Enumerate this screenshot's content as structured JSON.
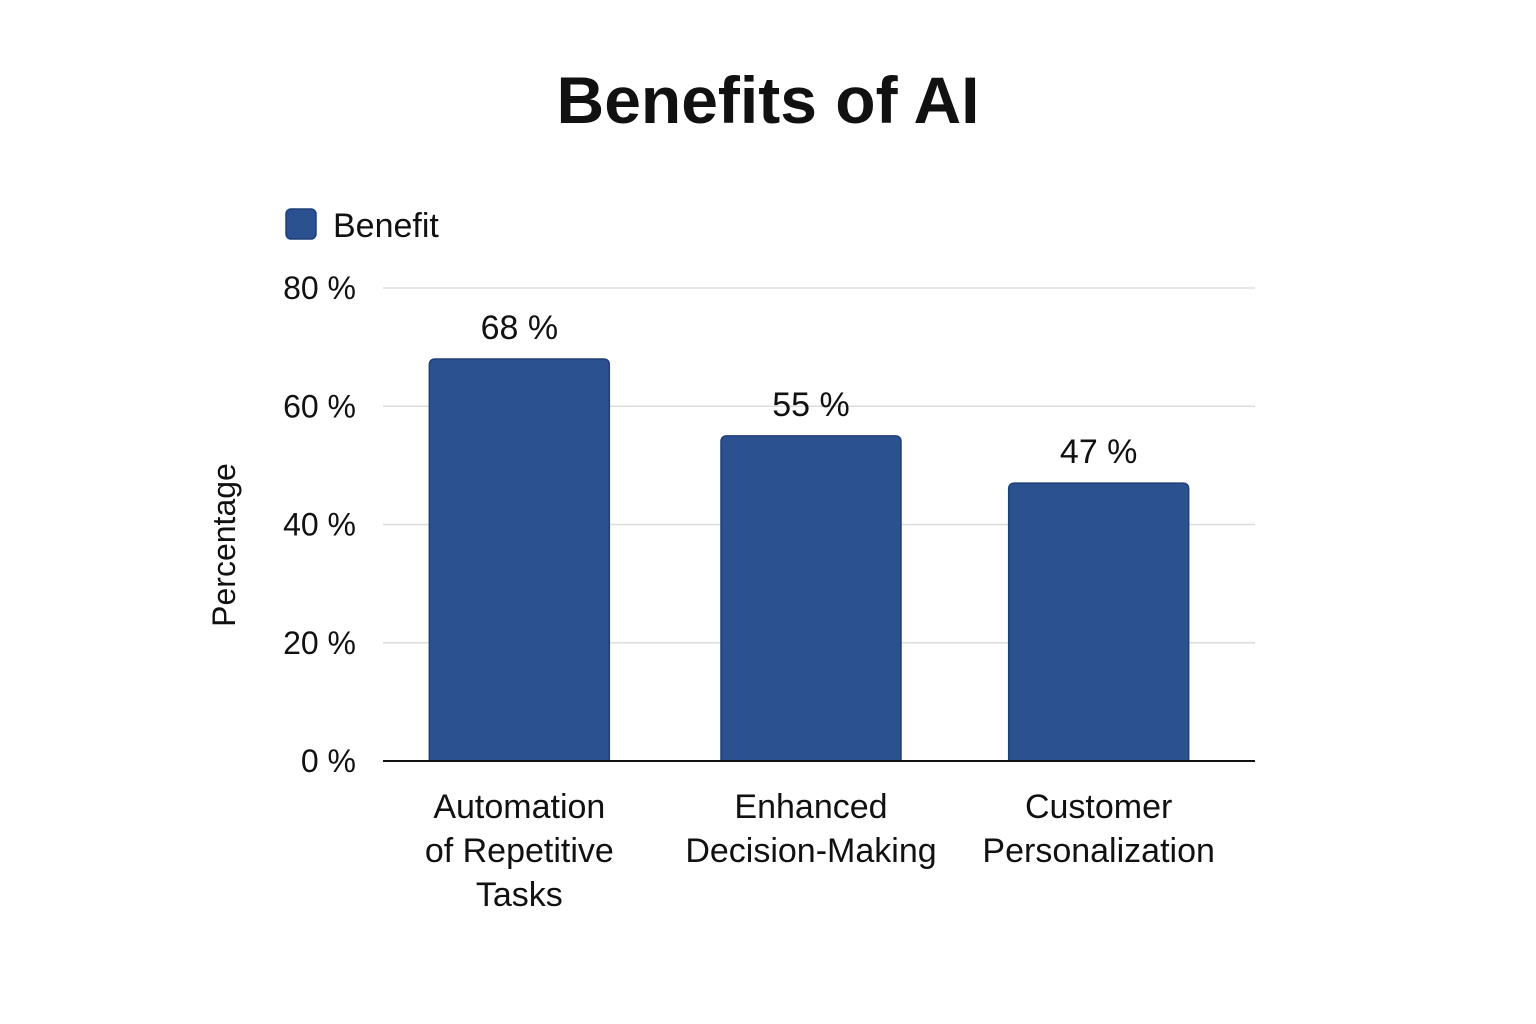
{
  "chart_data": {
    "type": "bar",
    "title": "Benefits of AI",
    "ylabel": "Percentage",
    "xlabel": "",
    "categories": [
      [
        "Automation",
        "of Repetitive",
        "Tasks"
      ],
      [
        "Enhanced",
        "Decision-Making"
      ],
      [
        "Customer",
        "Personalization"
      ]
    ],
    "series": [
      {
        "name": "Benefit",
        "values": [
          68,
          55,
          47
        ],
        "color": "#2c5190"
      }
    ],
    "data_labels": [
      "68 %",
      "55 %",
      "47 %"
    ],
    "ylim": [
      0,
      80
    ],
    "yticks": [
      0,
      20,
      40,
      60,
      80
    ],
    "ytick_labels": [
      "0 %",
      "20 %",
      "40 %",
      "60 %",
      "80 %"
    ],
    "grid": true,
    "legend_position": "top-left",
    "gridline_color": "#dddddd",
    "axis_color": "#111111"
  }
}
